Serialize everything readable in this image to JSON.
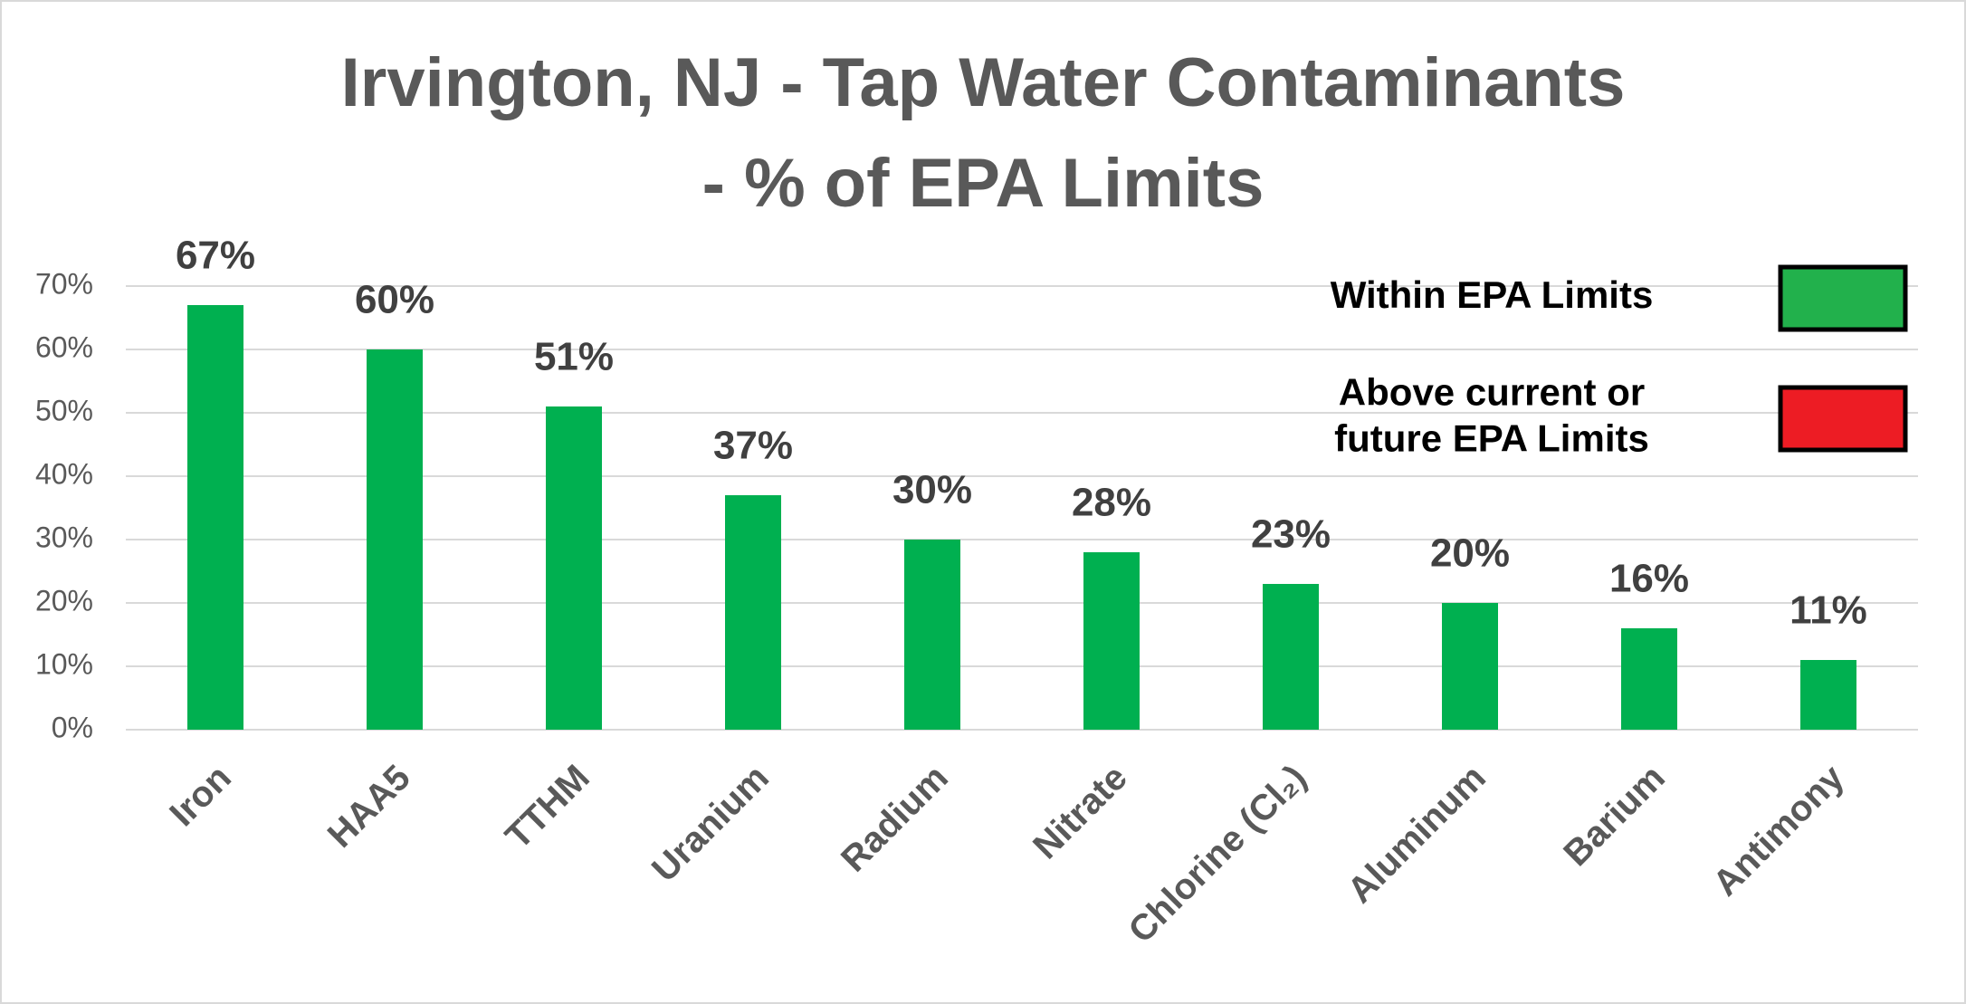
{
  "chart_data": {
    "type": "bar",
    "title": [
      "Irvington, NJ - Tap Water Contaminants",
      "- % of EPA  Limits"
    ],
    "categories": [
      "Iron",
      "HAA5",
      "TTHM",
      "Uranium",
      "Radium",
      "Nitrate",
      "Chlorine (Cl₂)",
      "Aluminum",
      "Barium",
      "Antimony"
    ],
    "values": [
      67,
      60,
      51,
      37,
      30,
      28,
      23,
      20,
      16,
      11
    ],
    "value_labels": [
      "67%",
      "60%",
      "51%",
      "37%",
      "30%",
      "28%",
      "23%",
      "20%",
      "16%",
      "11%"
    ],
    "color": "#00b050",
    "ylim": [
      0,
      70
    ],
    "yticks": [
      {
        "value": 0,
        "label": "0%"
      },
      {
        "value": 10,
        "label": "10%"
      },
      {
        "value": 20,
        "label": "20%"
      },
      {
        "value": 30,
        "label": "30%"
      },
      {
        "value": 40,
        "label": "40%"
      },
      {
        "value": 50,
        "label": "50%"
      },
      {
        "value": 60,
        "label": "60%"
      },
      {
        "value": 70,
        "label": "70%"
      }
    ],
    "grid": true,
    "legend": [
      {
        "label": [
          "Within EPA Limits"
        ],
        "color": "#22b14c"
      },
      {
        "label": [
          "Above current or",
          "future EPA Limits"
        ],
        "color": "#ed1c24"
      }
    ]
  }
}
